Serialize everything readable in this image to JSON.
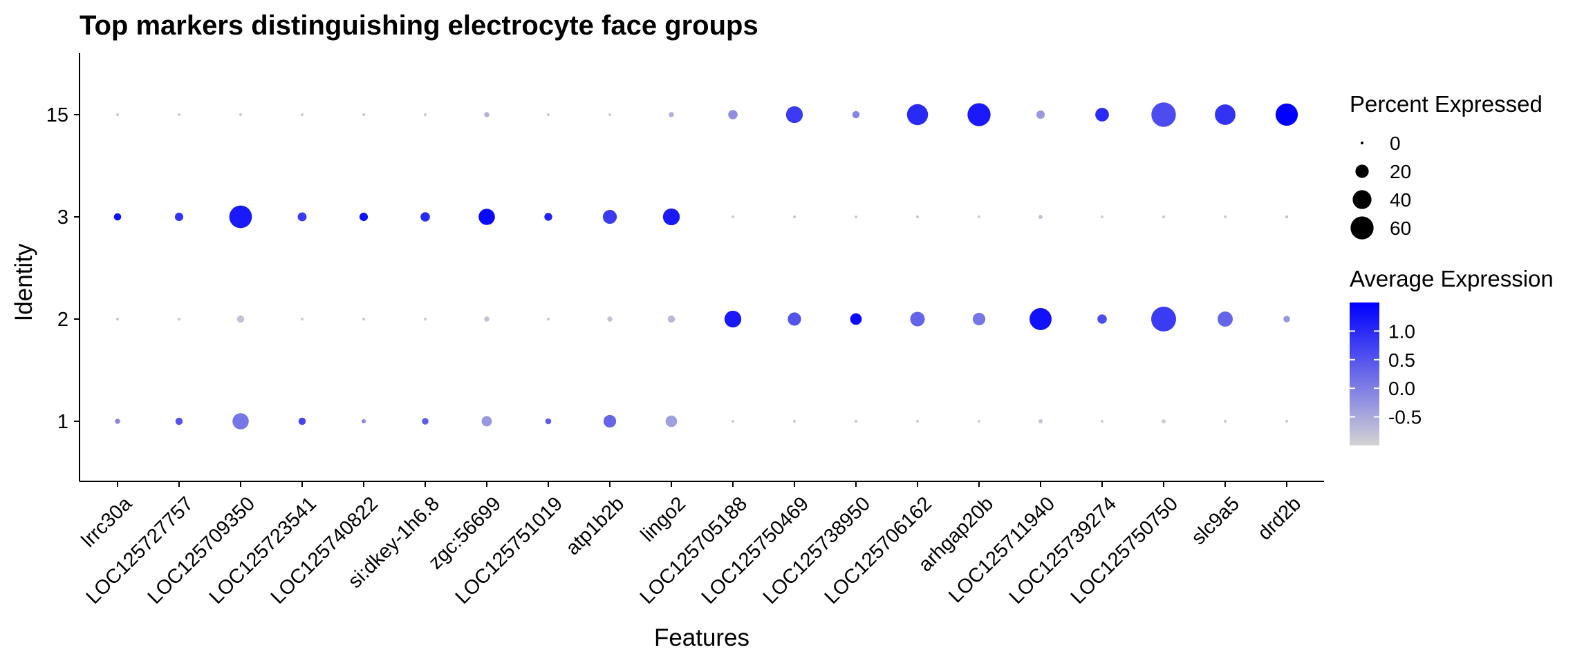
{
  "chart_data": {
    "type": "dot",
    "title": "Top markers distinguishing electrocyte face groups",
    "xlabel": "Features",
    "ylabel": "Identity",
    "features": [
      "lrrc30a",
      "LOC125727757",
      "LOC125709350",
      "LOC125723541",
      "LOC125740822",
      "si:dkey-1h6.8",
      "zgc:56699",
      "LOC125751019",
      "atp1b2b",
      "lingo2",
      "LOC125705188",
      "LOC125750469",
      "LOC125738950",
      "LOC125706162",
      "arhgap20b",
      "LOC125711940",
      "LOC125739274",
      "LOC125750750",
      "slc9a5",
      "drd2b"
    ],
    "identities": [
      "1",
      "2",
      "3",
      "15"
    ],
    "percent_expressed": {
      "1": [
        3,
        6,
        30,
        6,
        2,
        5,
        12,
        4,
        18,
        15,
        1,
        1,
        1,
        1,
        1,
        2,
        1,
        2,
        1,
        1
      ],
      "2": [
        1,
        1,
        6,
        1,
        1,
        1,
        3,
        1,
        3,
        6,
        32,
        20,
        15,
        24,
        18,
        55,
        10,
        70,
        26,
        5
      ],
      "3": [
        6,
        8,
        58,
        9,
        8,
        10,
        30,
        7,
        22,
        32,
        1,
        1,
        1,
        1,
        1,
        2,
        1,
        1,
        1,
        1
      ],
      "15": [
        1,
        1,
        1,
        1,
        1,
        1,
        3,
        1,
        1,
        3,
        10,
        32,
        6,
        50,
        60,
        8,
        21,
        68,
        48,
        56
      ]
    },
    "average_expression": {
      "1": [
        -0.1,
        0.5,
        0.1,
        0.7,
        -0.1,
        0.4,
        -0.3,
        0.4,
        0.3,
        -0.4,
        -0.9,
        -0.9,
        -0.9,
        -0.9,
        -0.9,
        -0.8,
        -0.9,
        -0.9,
        -0.9,
        -0.9
      ],
      "2": [
        -0.9,
        -0.9,
        -0.8,
        -0.9,
        -0.9,
        -0.9,
        -0.8,
        -0.9,
        -0.8,
        -0.7,
        1.2,
        0.5,
        1.4,
        0.3,
        0.1,
        1.3,
        0.6,
        0.8,
        0.3,
        -0.3
      ],
      "3": [
        1.3,
        0.9,
        1.2,
        0.8,
        1.3,
        1.0,
        1.4,
        1.1,
        0.8,
        1.2,
        -0.9,
        -0.9,
        -0.9,
        -0.9,
        -0.9,
        -0.8,
        -0.9,
        -0.9,
        -0.9,
        -0.8
      ],
      "15": [
        -0.9,
        -0.9,
        -0.9,
        -0.9,
        -0.9,
        -0.9,
        -0.6,
        -0.9,
        -0.9,
        -0.6,
        -0.2,
        0.8,
        -0.1,
        1.0,
        1.2,
        -0.3,
        1.0,
        0.6,
        0.9,
        1.5
      ]
    },
    "size_legend": {
      "title": "Percent Expressed",
      "values": [
        0,
        20,
        40,
        60
      ],
      "labels": [
        "0",
        "20",
        "40",
        "60"
      ]
    },
    "color_legend": {
      "title": "Average Expression",
      "low": "#d3d3d3",
      "high": "#0000ff",
      "min": -1.0,
      "max": 1.5,
      "ticks": [
        1.0,
        0.5,
        0.0,
        -0.5
      ],
      "tick_labels": [
        "1.0",
        "0.5",
        "0.0",
        "-0.5"
      ]
    },
    "size_scale_max": 70,
    "grid": false,
    "legend_position": "right"
  }
}
